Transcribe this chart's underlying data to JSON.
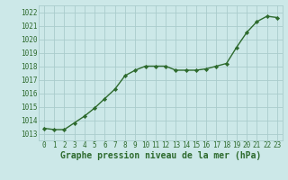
{
  "x": [
    0,
    1,
    2,
    3,
    4,
    5,
    6,
    7,
    8,
    9,
    10,
    11,
    12,
    13,
    14,
    15,
    16,
    17,
    18,
    19,
    20,
    21,
    22,
    23
  ],
  "y": [
    1013.4,
    1013.3,
    1013.3,
    1013.8,
    1014.3,
    1014.9,
    1015.6,
    1016.3,
    1017.3,
    1017.7,
    1018.0,
    1018.0,
    1018.0,
    1017.7,
    1017.7,
    1017.7,
    1017.8,
    1018.0,
    1018.2,
    1019.4,
    1020.5,
    1021.3,
    1021.7,
    1021.6
  ],
  "line_color": "#2d6a2d",
  "marker_color": "#2d6a2d",
  "bg_color": "#cce8e8",
  "grid_color": "#aacccc",
  "xlabel": "Graphe pression niveau de la mer (hPa)",
  "xlabel_fontsize": 7.0,
  "ylim_min": 1012.5,
  "ylim_max": 1022.5,
  "xlim_min": -0.5,
  "xlim_max": 23.5,
  "yticks": [
    1013,
    1014,
    1015,
    1016,
    1017,
    1018,
    1019,
    1020,
    1021,
    1022
  ],
  "xticks": [
    0,
    1,
    2,
    3,
    4,
    5,
    6,
    7,
    8,
    9,
    10,
    11,
    12,
    13,
    14,
    15,
    16,
    17,
    18,
    19,
    20,
    21,
    22,
    23
  ],
  "tick_fontsize": 5.5,
  "marker_size": 2.2,
  "line_width": 1.0
}
